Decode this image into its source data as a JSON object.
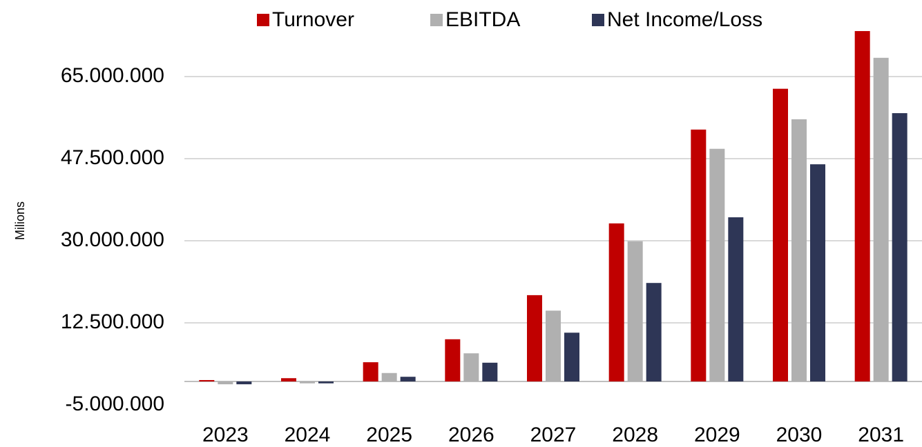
{
  "chart_data": {
    "type": "bar",
    "y_label": "Milions",
    "categories": [
      "2023",
      "2024",
      "2025",
      "2026",
      "2027",
      "2028",
      "2029",
      "2030",
      "2031"
    ],
    "series": [
      {
        "name": "Turnover",
        "color": "#c00000",
        "values": [
          300000,
          700000,
          4100000,
          9000000,
          18400000,
          33700000,
          53700000,
          62400000,
          74700000
        ]
      },
      {
        "name": "EBITDA",
        "color": "#b0b0b0",
        "values": [
          -600000,
          -400000,
          1800000,
          6000000,
          15100000,
          29900000,
          49600000,
          55900000,
          69000000
        ]
      },
      {
        "name": "Net Income/Loss",
        "color": "#2e3656",
        "values": [
          -600000,
          -400000,
          1000000,
          4000000,
          10400000,
          21000000,
          35000000,
          46300000,
          57200000
        ]
      }
    ],
    "ylim": [
      -5000000,
      75000000
    ],
    "yticks": [
      {
        "value": -5000000,
        "label": "-5.000.000"
      },
      {
        "value": 12500000,
        "label": "12.500.000"
      },
      {
        "value": 30000000,
        "label": "30.000.000"
      },
      {
        "value": 47500000,
        "label": "47.500.000"
      },
      {
        "value": 65000000,
        "label": "65.000.000"
      }
    ],
    "grid": true,
    "legend": "top"
  }
}
